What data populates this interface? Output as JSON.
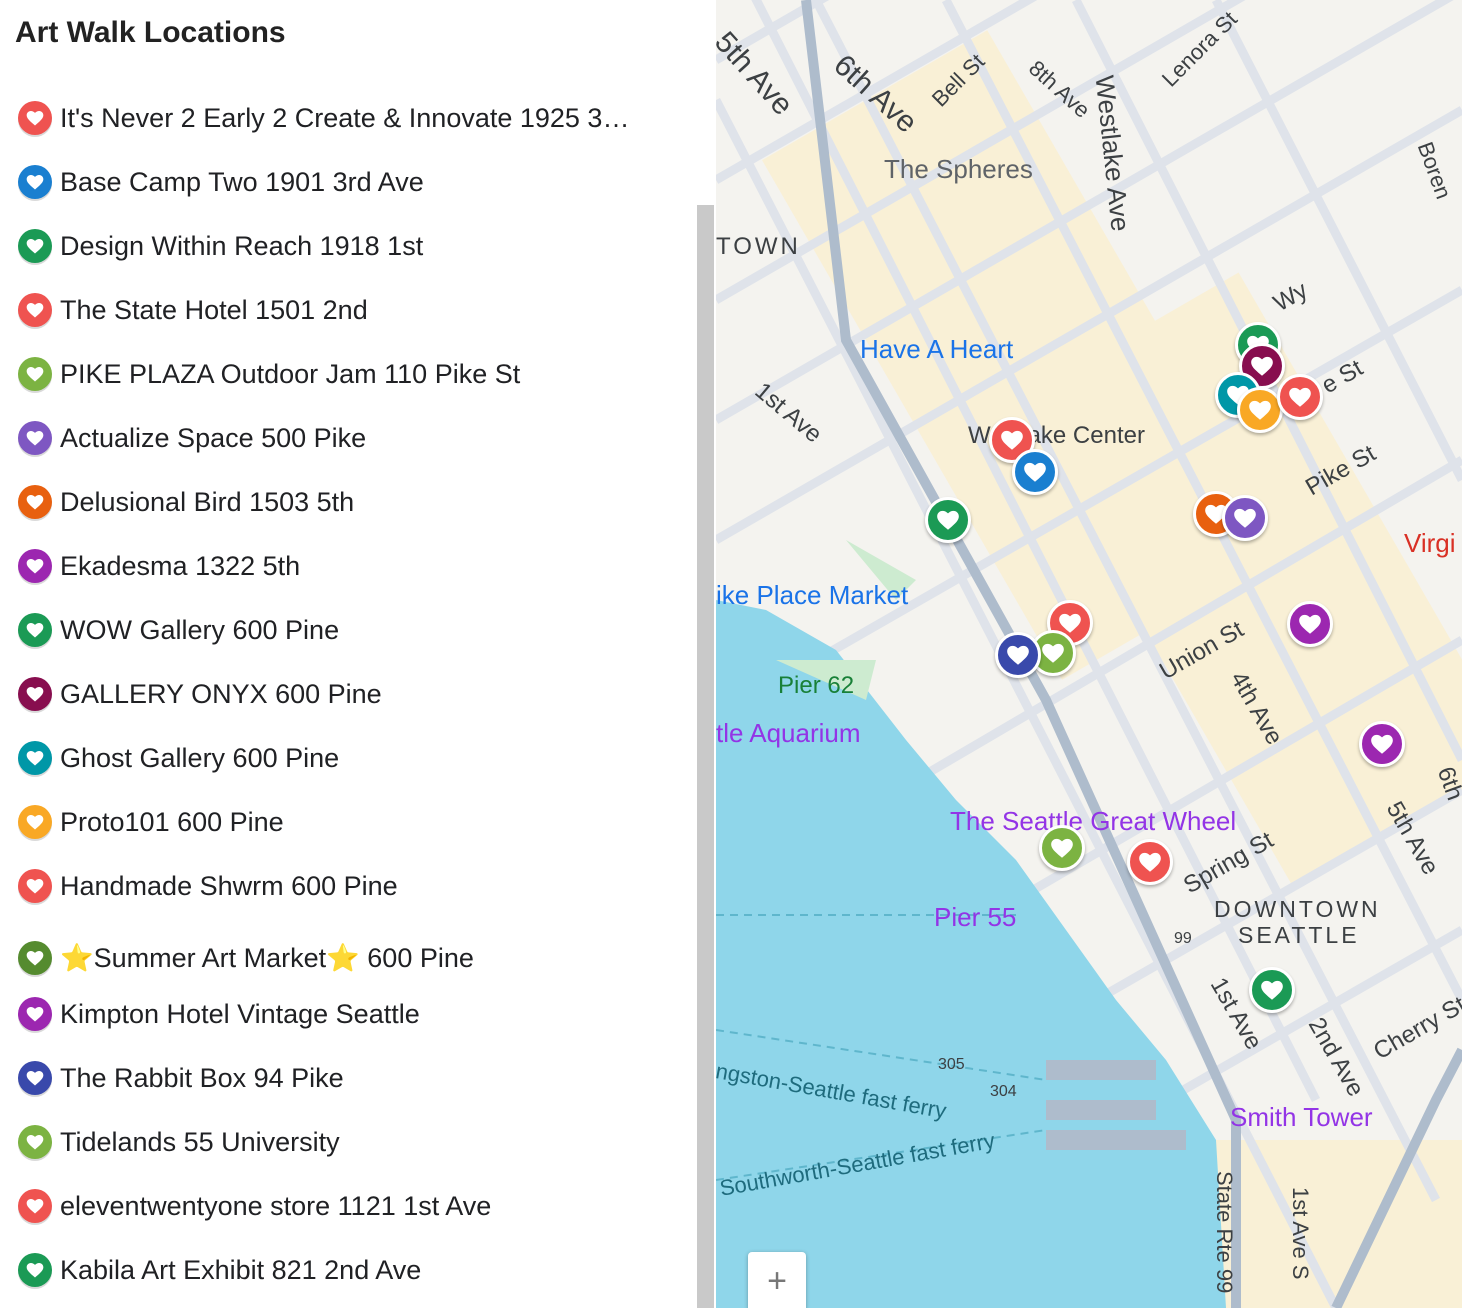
{
  "title": "Art Walk Locations",
  "colors": {
    "red": "#ef5350",
    "blue": "#1a7fd0",
    "green": "#1b9a55",
    "lightgreen": "#7cb342",
    "purple": "#7e57c2",
    "orange": "#e8600f",
    "magenta": "#9c27b0",
    "maroon": "#880e4f",
    "teal": "#0097a7",
    "yellow": "#f9a825",
    "navy": "#3949ab",
    "water": "#8fd6ea"
  },
  "items": [
    {
      "label": "It's Never 2 Early 2 Create & Innovate 1925 3…",
      "color": "#ef5350",
      "icon": "heart-icon"
    },
    {
      "label": "Base Camp Two 1901 3rd Ave",
      "color": "#1a7fd0",
      "icon": "heart-icon"
    },
    {
      "label": "Design Within Reach 1918 1st",
      "color": "#1b9a55",
      "icon": "heart-icon"
    },
    {
      "label": "The State Hotel 1501 2nd",
      "color": "#ef5350",
      "icon": "heart-icon"
    },
    {
      "label": "PIKE PLAZA Outdoor Jam 110 Pike St",
      "color": "#7cb342",
      "icon": "heart-icon"
    },
    {
      "label": "Actualize Space 500 Pike",
      "color": "#7e57c2",
      "icon": "heart-icon"
    },
    {
      "label": "Delusional Bird 1503 5th",
      "color": "#e8600f",
      "icon": "heart-icon"
    },
    {
      "label": "Ekadesma 1322 5th",
      "color": "#9c27b0",
      "icon": "heart-icon"
    },
    {
      "label": "WOW Gallery 600 Pine",
      "color": "#1b9a55",
      "icon": "heart-icon"
    },
    {
      "label": "GALLERY ONYX 600 Pine",
      "color": "#880e4f",
      "icon": "heart-icon"
    },
    {
      "label": "Ghost Gallery 600 Pine",
      "color": "#0097a7",
      "icon": "heart-icon"
    },
    {
      "label": "Proto101 600 Pine",
      "color": "#f9a825",
      "icon": "heart-icon"
    },
    {
      "label": "Handmade Shwrm 600 Pine",
      "color": "#ef5350",
      "icon": "heart-icon"
    },
    {
      "label": "⭐Summer Art Market⭐ 600 Pine",
      "color": "#558b2f",
      "icon": "heart-icon"
    },
    {
      "label": "Kimpton Hotel Vintage Seattle",
      "color": "#9c27b0",
      "icon": "heart-icon"
    },
    {
      "label": "The Rabbit Box 94 Pike",
      "color": "#3949ab",
      "icon": "heart-icon"
    },
    {
      "label": "Tidelands 55 University",
      "color": "#7cb342",
      "icon": "heart-icon"
    },
    {
      "label": "eleventwentyone store 1121 1st Ave",
      "color": "#ef5350",
      "icon": "heart-icon"
    },
    {
      "label": "Kabila Art Exhibit 821 2nd Ave",
      "color": "#1b9a55",
      "icon": "heart-icon"
    }
  ],
  "map": {
    "labels": [
      {
        "text": "5th Ave",
        "c": "#3c4043"
      },
      {
        "text": "6th Ave",
        "c": "#3c4043"
      },
      {
        "text": "Bell St",
        "c": "#3c4043"
      },
      {
        "text": "8th Ave",
        "c": "#3c4043"
      },
      {
        "text": "Westlake Ave",
        "c": "#3c4043"
      },
      {
        "text": "Lenora St",
        "c": "#3c4043"
      },
      {
        "text": "Boren",
        "c": "#3c4043"
      },
      {
        "text": "The Spheres",
        "c": "#5f6368"
      },
      {
        "text": "TOWN",
        "c": "#3c4043"
      },
      {
        "text": "Have A Heart",
        "c": "#1a73e8"
      },
      {
        "text": "1st Ave",
        "c": "#3c4043"
      },
      {
        "text": "Westlake Center",
        "c": "#3c4043"
      },
      {
        "text": "Pike St",
        "c": "#3c4043"
      },
      {
        "text": "Wy",
        "c": "#3c4043"
      },
      {
        "text": "e St",
        "c": "#3c4043"
      },
      {
        "text": "ike Place Market",
        "c": "#1a73e8"
      },
      {
        "text": "Virgi",
        "c": "#d93025"
      },
      {
        "text": "Pier 62",
        "c": "#188038"
      },
      {
        "text": "tle Aquarium",
        "c": "#9334e6"
      },
      {
        "text": "Union St",
        "c": "#3c4043"
      },
      {
        "text": "4th Ave",
        "c": "#3c4043"
      },
      {
        "text": "The Seattle Great Wheel",
        "c": "#9334e6"
      },
      {
        "text": "Spring St",
        "c": "#3c4043"
      },
      {
        "text": "5th Ave",
        "c": "#3c4043"
      },
      {
        "text": "Pier 55",
        "c": "#9334e6"
      },
      {
        "text": "DOWNTOWN",
        "c": "#3c4043"
      },
      {
        "text": "SEATTLE",
        "c": "#3c4043"
      },
      {
        "text": "99",
        "c": "#3c4043"
      },
      {
        "text": "1st Ave",
        "c": "#3c4043"
      },
      {
        "text": "2nd Ave",
        "c": "#3c4043"
      },
      {
        "text": "Cherry St",
        "c": "#3c4043"
      },
      {
        "text": "ngston-Seattle fast ferry",
        "c": "#1e6b7d"
      },
      {
        "text": "Southworth-Seattle fast ferry",
        "c": "#1e6b7d"
      },
      {
        "text": "305",
        "c": "#3c4043"
      },
      {
        "text": "304",
        "c": "#3c4043"
      },
      {
        "text": "Smith Tower",
        "c": "#9334e6"
      },
      {
        "text": "State Rte 99",
        "c": "#3c4043"
      },
      {
        "text": "1st Ave S",
        "c": "#3c4043"
      },
      {
        "text": "6th",
        "c": "#3c4043"
      }
    ],
    "markers": [
      {
        "color": "#1b9a55"
      },
      {
        "color": "#880e4f"
      },
      {
        "color": "#0097a7"
      },
      {
        "color": "#f9a825"
      },
      {
        "color": "#ef5350"
      },
      {
        "color": "#ef5350"
      },
      {
        "color": "#1a7fd0"
      },
      {
        "color": "#1b9a55"
      },
      {
        "color": "#e8600f"
      },
      {
        "color": "#7e57c2"
      },
      {
        "color": "#ef5350"
      },
      {
        "color": "#7cb342"
      },
      {
        "color": "#3949ab"
      },
      {
        "color": "#9c27b0"
      },
      {
        "color": "#9c27b0"
      },
      {
        "color": "#7cb342"
      },
      {
        "color": "#ef5350"
      },
      {
        "color": "#1b9a55"
      }
    ],
    "zoom_in": "+"
  }
}
